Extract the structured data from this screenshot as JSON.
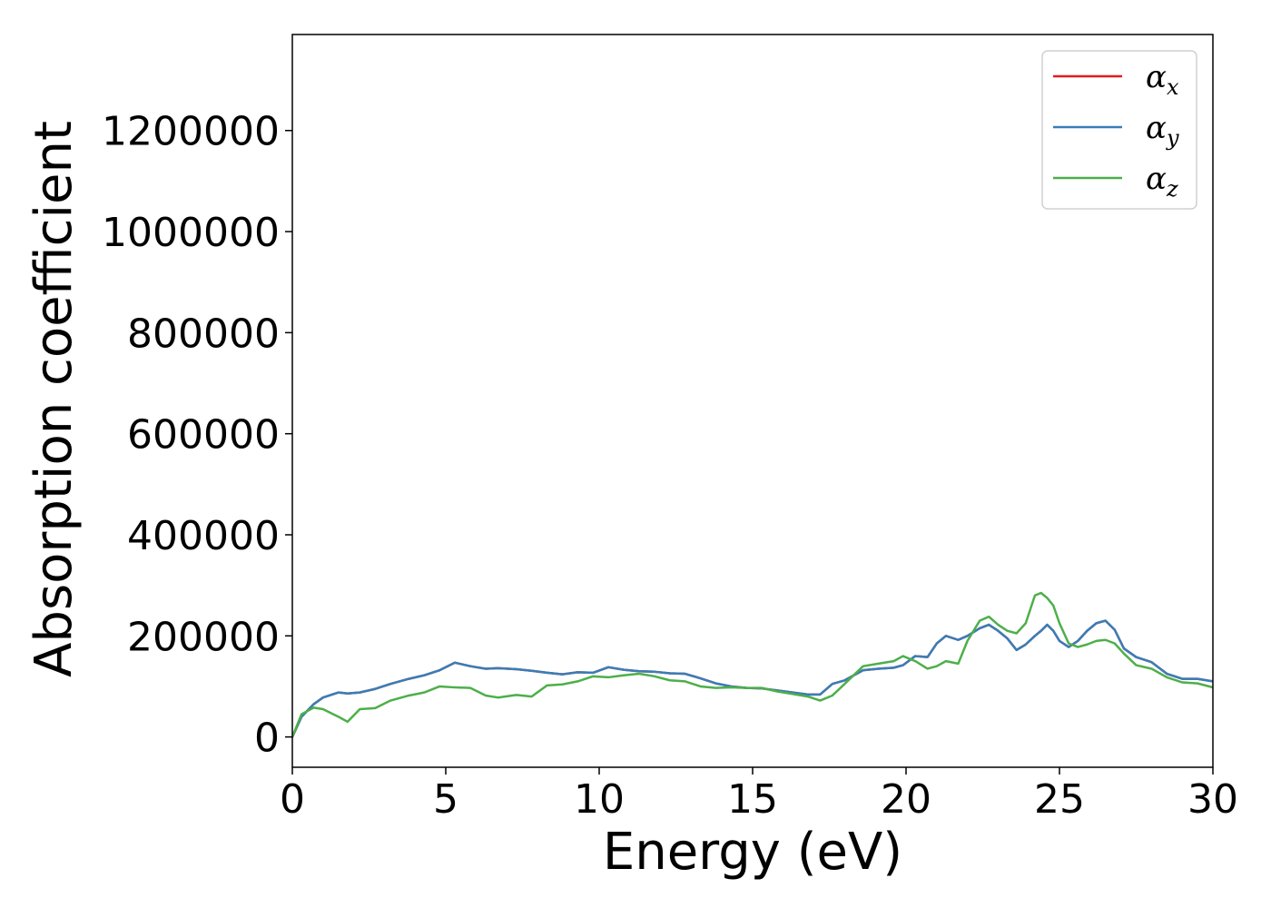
{
  "chart_data": {
    "type": "line",
    "xlabel": "Energy (eV)",
    "ylabel": "Absorption coefficient",
    "xlim": [
      0,
      30
    ],
    "ylim": [
      -60000,
      1390000
    ],
    "xticks": [
      0,
      5,
      10,
      15,
      20,
      25,
      30
    ],
    "xtick_labels": [
      "0",
      "5",
      "10",
      "15",
      "20",
      "25",
      "30"
    ],
    "yticks": [
      0,
      200000,
      400000,
      600000,
      800000,
      1000000,
      1200000
    ],
    "ytick_labels": [
      "0",
      "200000",
      "400000",
      "600000",
      "800000",
      "1000000",
      "1200000"
    ],
    "grid": false,
    "legend_position": "top-right",
    "x": [
      0,
      0.3,
      0.7,
      1.0,
      1.5,
      1.8,
      2.2,
      2.7,
      3.2,
      3.8,
      4.3,
      4.8,
      5.3,
      5.8,
      6.3,
      6.7,
      7.3,
      7.8,
      8.3,
      8.8,
      9.3,
      9.8,
      10.3,
      10.8,
      11.3,
      11.8,
      12.3,
      12.8,
      13.3,
      13.8,
      14.3,
      14.8,
      15.3,
      15.8,
      16.3,
      16.8,
      17.2,
      17.6,
      18.0,
      18.6,
      19.1,
      19.6,
      19.9,
      20.3,
      20.7,
      21.0,
      21.3,
      21.7,
      22.0,
      22.4,
      22.7,
      23.0,
      23.3,
      23.6,
      23.9,
      24.2,
      24.4,
      24.6,
      24.8,
      25.0,
      25.3,
      25.6,
      25.9,
      26.2,
      26.5,
      26.8,
      27.1,
      27.5,
      28.0,
      28.5,
      29.0,
      29.5,
      30.0
    ],
    "series": [
      {
        "name": "α",
        "sub": "x",
        "color": "#e41a1c",
        "values": [
          0,
          40000,
          65000,
          78000,
          88000,
          86000,
          88000,
          95000,
          105000,
          115000,
          122000,
          132000,
          147000,
          140000,
          135000,
          136000,
          134000,
          131000,
          127000,
          124000,
          128000,
          127000,
          138000,
          133000,
          130000,
          129000,
          126000,
          125000,
          116000,
          106000,
          100000,
          97000,
          96000,
          92000,
          88000,
          84000,
          84000,
          105000,
          112000,
          132000,
          135000,
          137000,
          142000,
          160000,
          158000,
          185000,
          200000,
          192000,
          200000,
          215000,
          222000,
          210000,
          195000,
          172000,
          183000,
          200000,
          210000,
          222000,
          210000,
          190000,
          178000,
          190000,
          210000,
          225000,
          230000,
          212000,
          175000,
          158000,
          148000,
          125000,
          115000,
          115000,
          110000
        ]
      },
      {
        "name": "α",
        "sub": "y",
        "color": "#377eb8",
        "values": [
          0,
          40000,
          65000,
          78000,
          88000,
          86000,
          88000,
          95000,
          105000,
          115000,
          122000,
          132000,
          147000,
          140000,
          135000,
          136000,
          134000,
          131000,
          127000,
          124000,
          128000,
          127000,
          138000,
          133000,
          130000,
          129000,
          126000,
          125000,
          116000,
          106000,
          100000,
          97000,
          96000,
          92000,
          88000,
          84000,
          84000,
          105000,
          112000,
          132000,
          135000,
          137000,
          142000,
          160000,
          158000,
          185000,
          200000,
          192000,
          200000,
          215000,
          222000,
          210000,
          195000,
          172000,
          183000,
          200000,
          210000,
          222000,
          210000,
          190000,
          178000,
          190000,
          210000,
          225000,
          230000,
          212000,
          175000,
          158000,
          148000,
          125000,
          115000,
          115000,
          110000
        ]
      },
      {
        "name": "α",
        "sub": "z",
        "color": "#4daf4a",
        "values": [
          0,
          45000,
          58000,
          55000,
          40000,
          30000,
          55000,
          57000,
          72000,
          82000,
          88000,
          100000,
          98000,
          97000,
          82000,
          78000,
          83000,
          80000,
          102000,
          104000,
          110000,
          120000,
          118000,
          122000,
          125000,
          120000,
          112000,
          110000,
          100000,
          97000,
          98000,
          97000,
          97000,
          90000,
          85000,
          80000,
          72000,
          82000,
          105000,
          140000,
          145000,
          150000,
          160000,
          150000,
          135000,
          140000,
          150000,
          145000,
          190000,
          230000,
          238000,
          222000,
          210000,
          205000,
          225000,
          280000,
          285000,
          275000,
          260000,
          225000,
          185000,
          178000,
          183000,
          190000,
          192000,
          185000,
          165000,
          142000,
          135000,
          118000,
          108000,
          106000,
          98000
        ]
      }
    ]
  }
}
